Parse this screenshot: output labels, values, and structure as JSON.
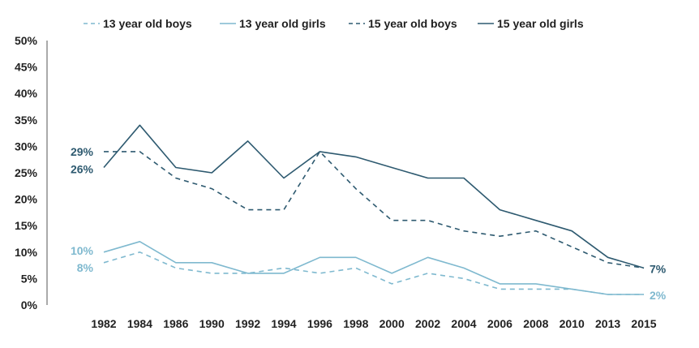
{
  "chart_data": {
    "type": "line",
    "title": "",
    "xlabel": "",
    "ylabel": "",
    "categories": [
      "1982",
      "1984",
      "1986",
      "1990",
      "1992",
      "1994",
      "1996",
      "1998",
      "2000",
      "2002",
      "2004",
      "2006",
      "2008",
      "2010",
      "2013",
      "2015"
    ],
    "ylim": [
      0,
      50
    ],
    "yticks": [
      "0%",
      "5%",
      "10%",
      "15%",
      "20%",
      "25%",
      "30%",
      "35%",
      "40%",
      "45%",
      "50%"
    ],
    "grid": false,
    "legend_position": "top",
    "series": [
      {
        "name": "13 year old boys",
        "dashed": true,
        "color": "#7fb9cf",
        "values": [
          8,
          10,
          7,
          6,
          6,
          7,
          6,
          7,
          4,
          6,
          5,
          3,
          3,
          3,
          2,
          2
        ]
      },
      {
        "name": "13 year old girls",
        "dashed": false,
        "color": "#7fb9cf",
        "values": [
          10,
          12,
          8,
          8,
          6,
          6,
          9,
          9,
          6,
          9,
          7,
          4,
          4,
          3,
          2,
          2
        ]
      },
      {
        "name": "15 year old boys",
        "dashed": true,
        "color": "#2e5a70",
        "values": [
          29,
          29,
          24,
          22,
          18,
          18,
          29,
          22,
          16,
          16,
          14,
          13,
          14,
          11,
          8,
          7
        ]
      },
      {
        "name": "15 year old girls",
        "dashed": false,
        "color": "#2e5a70",
        "values": [
          26,
          34,
          26,
          25,
          31,
          24,
          29,
          28,
          26,
          24,
          24,
          18,
          16,
          14,
          9,
          7
        ]
      }
    ],
    "annotations": {
      "start": [
        {
          "text": "29%",
          "series": 2,
          "color": "#2e5a70"
        },
        {
          "text": "26%",
          "series": 3,
          "color": "#2e5a70"
        },
        {
          "text": "10%",
          "series": 1,
          "color": "#7fb9cf"
        },
        {
          "text": "8%",
          "series": 0,
          "color": "#7fb9cf"
        }
      ],
      "end": [
        {
          "text": "7%",
          "series": 3,
          "color": "#2e5a70"
        },
        {
          "text": "2%",
          "series": 1,
          "color": "#7fb9cf"
        }
      ]
    }
  }
}
